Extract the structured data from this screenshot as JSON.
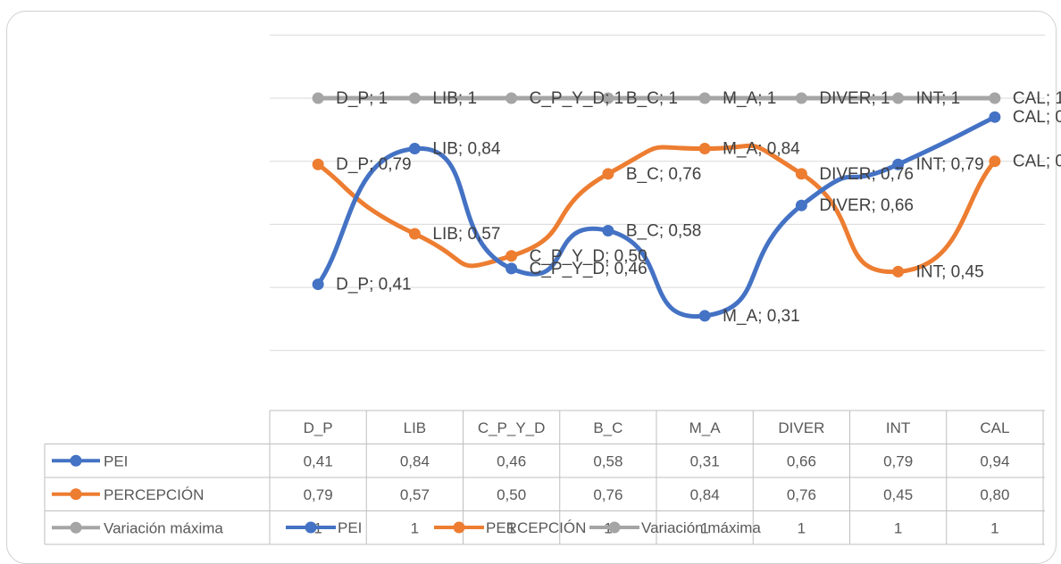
{
  "chart_data": {
    "type": "line",
    "title": "",
    "categories": [
      "D_P",
      "LIB",
      "C_P_Y_D",
      "B_C",
      "M_A",
      "DIVER",
      "INT",
      "CAL"
    ],
    "series": [
      {
        "name": "PEI",
        "values": [
          0.41,
          0.84,
          0.46,
          0.58,
          0.31,
          0.66,
          0.79,
          0.94
        ],
        "labels": [
          "0,41",
          "0,84",
          "0,46",
          "0,58",
          "0,31",
          "0,66",
          "0,79",
          "0,94"
        ],
        "color": "#4472c4"
      },
      {
        "name": "PERCEPCIÓN",
        "values": [
          0.79,
          0.57,
          0.5,
          0.76,
          0.84,
          0.76,
          0.45,
          0.8
        ],
        "labels": [
          "0,79",
          "0,57",
          "0,50",
          "0,76",
          "0,84",
          "0,76",
          "0,45",
          "0,80"
        ],
        "color": "#ed7d31"
      },
      {
        "name": "Variación máxima",
        "values": [
          1,
          1,
          1,
          1,
          1,
          1,
          1,
          1
        ],
        "labels": [
          "1",
          "1",
          "1",
          "1",
          "1",
          "1",
          "1",
          "1"
        ],
        "color": "#a5a5a5"
      }
    ],
    "smooth": true,
    "grid": true,
    "data_table": true,
    "legend": "bottom"
  }
}
